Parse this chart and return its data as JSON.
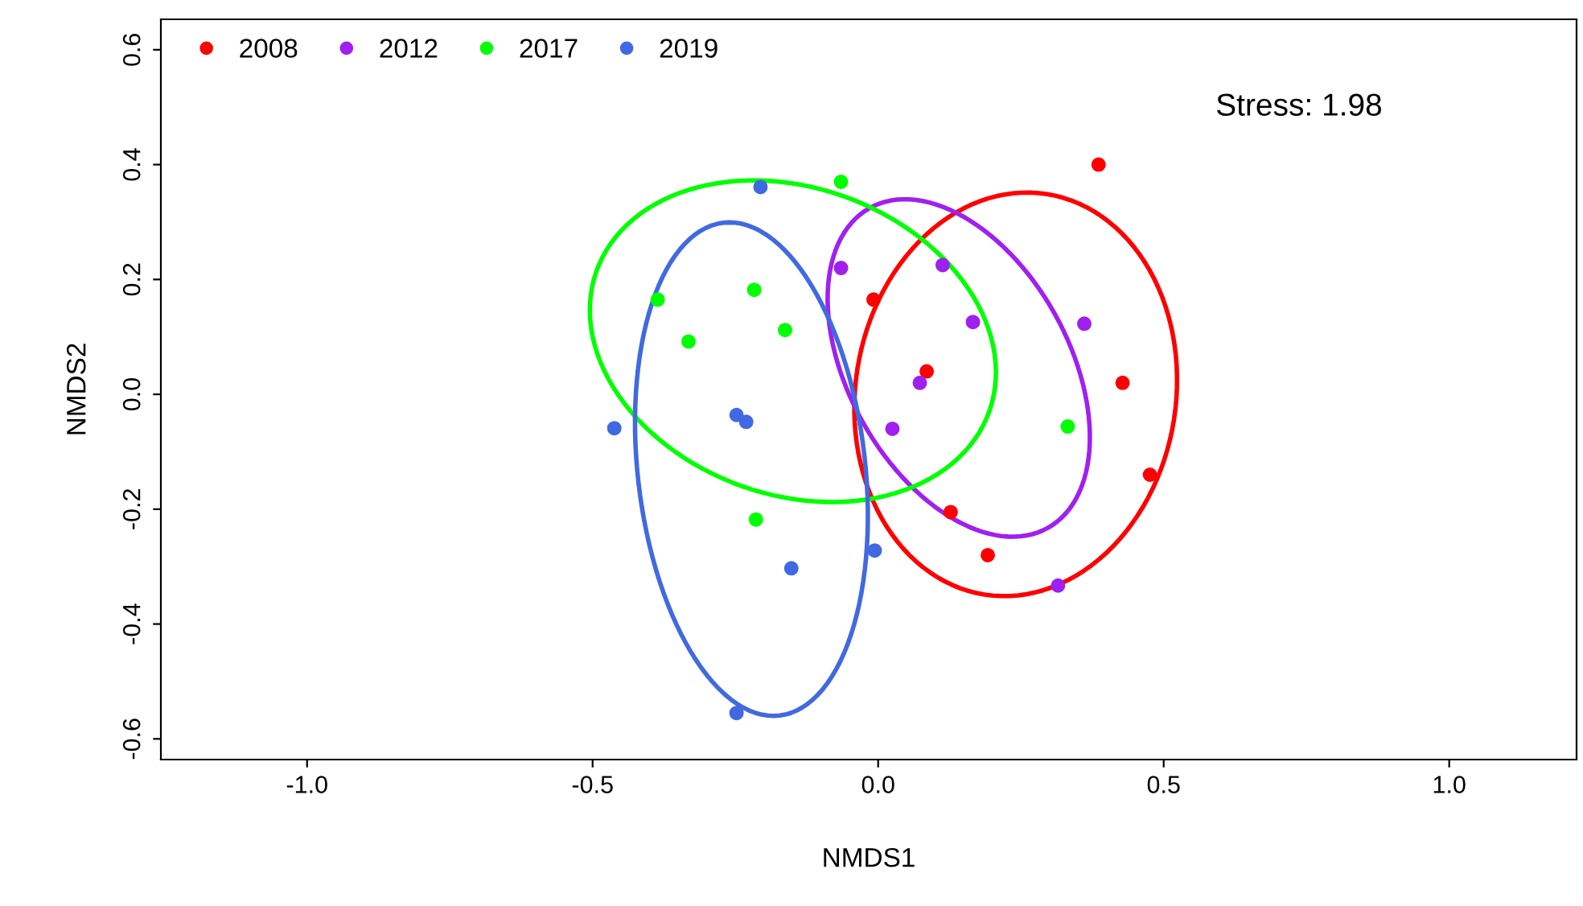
{
  "chart_data": {
    "type": "scatter",
    "xlabel": "NMDS1",
    "ylabel": "NMDS2",
    "xlim": [
      -1.256,
      1.223
    ],
    "ylim": [
      -0.636,
      0.653
    ],
    "xticks": [
      {
        "value": -1.0,
        "label": "-1.0"
      },
      {
        "value": -0.5,
        "label": "-0.5"
      },
      {
        "value": 0.0,
        "label": "0.0"
      },
      {
        "value": 0.5,
        "label": "0.5"
      },
      {
        "value": 1.0,
        "label": "1.0"
      }
    ],
    "yticks": [
      {
        "value": -0.6,
        "label": "-0.6"
      },
      {
        "value": -0.4,
        "label": "-0.4"
      },
      {
        "value": -0.2,
        "label": "-0.2"
      },
      {
        "value": 0.0,
        "label": "0.0"
      },
      {
        "value": 0.2,
        "label": "0.2"
      },
      {
        "value": 0.4,
        "label": "0.4"
      },
      {
        "value": 0.6,
        "label": "0.6"
      }
    ],
    "grid": false,
    "legend": "top left",
    "marker": "circle",
    "annotations": [
      "Stress: 1.98"
    ],
    "series": [
      {
        "name": "2008",
        "color": "#ff0000",
        "x": [
          0.386,
          -0.008,
          0.085,
          0.428,
          0.476,
          0.127,
          0.192
        ],
        "values": [
          0.4,
          0.165,
          0.04,
          0.02,
          -0.14,
          -0.205,
          -0.28
        ]
      },
      {
        "name": "2012",
        "color": "#a020f0",
        "x": [
          -0.065,
          0.113,
          0.166,
          0.361,
          0.073,
          0.025,
          0.315
        ],
        "values": [
          0.22,
          0.225,
          0.126,
          0.123,
          0.02,
          -0.06,
          -0.333
        ]
      },
      {
        "name": "2017",
        "color": "#00ff00",
        "x": [
          -0.065,
          -0.386,
          -0.217,
          -0.332,
          -0.163,
          -0.214,
          0.332
        ],
        "values": [
          0.37,
          0.165,
          0.182,
          0.092,
          0.112,
          -0.218,
          -0.056
        ]
      },
      {
        "name": "2019",
        "color": "#4169e1",
        "x": [
          -0.206,
          -0.462,
          -0.248,
          -0.231,
          -0.152,
          -0.006,
          -0.248
        ],
        "values": [
          0.361,
          -0.059,
          -0.036,
          -0.048,
          -0.303,
          -0.272,
          -0.555
        ]
      }
    ]
  }
}
